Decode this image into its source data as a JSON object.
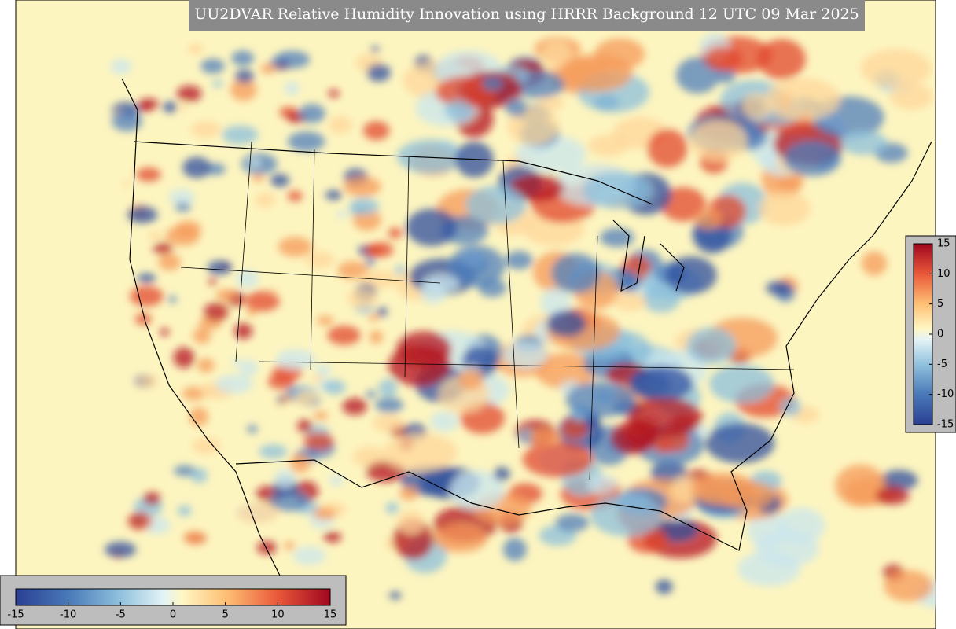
{
  "title": "UU2DVAR Relative Humidity Innovation using HRRR Background 12 UTC 09 Mar 2025",
  "colorbars": [
    {
      "orientation": "horizontal",
      "lim": [
        -15,
        15
      ],
      "ticks": [
        -15,
        -10,
        -5,
        0,
        5,
        10,
        15
      ]
    },
    {
      "orientation": "vertical",
      "lim": [
        -15,
        15
      ],
      "ticks": [
        -15,
        -10,
        -5,
        0,
        5,
        10,
        15
      ]
    }
  ]
}
